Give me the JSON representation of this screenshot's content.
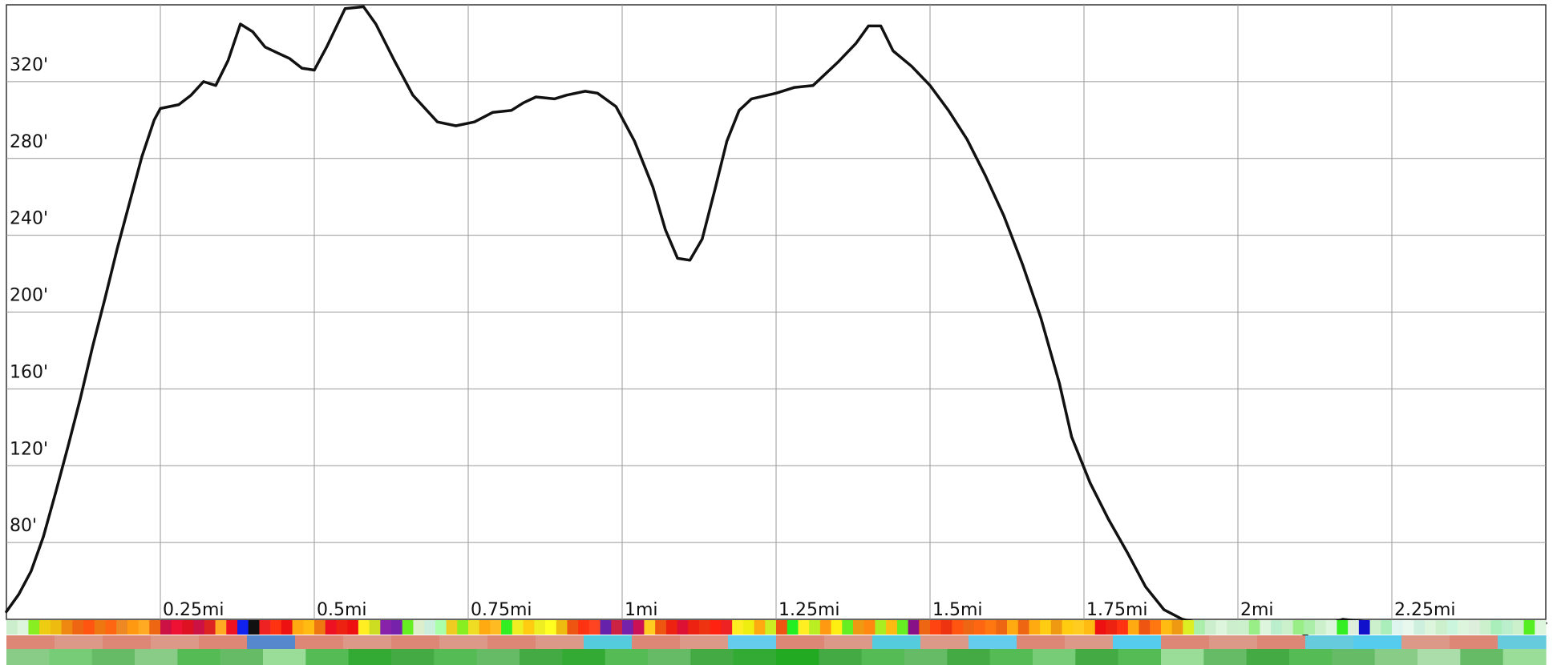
{
  "chart_data": {
    "type": "line",
    "title": "",
    "xlabel": "",
    "ylabel": "",
    "x_unit": "mi",
    "y_unit": "ft",
    "xlim": [
      0,
      2.5
    ],
    "ylim": [
      40,
      360
    ],
    "grid": true,
    "x_ticks": [
      {
        "value": 0.25,
        "label": "0.25mi"
      },
      {
        "value": 0.5,
        "label": "0.5mi"
      },
      {
        "value": 0.75,
        "label": "0.75mi"
      },
      {
        "value": 1.0,
        "label": "1mi"
      },
      {
        "value": 1.25,
        "label": "1.25mi"
      },
      {
        "value": 1.5,
        "label": "1.5mi"
      },
      {
        "value": 1.75,
        "label": "1.75mi"
      },
      {
        "value": 2.0,
        "label": "2mi"
      },
      {
        "value": 2.25,
        "label": "2.25mi"
      }
    ],
    "y_ticks": [
      {
        "value": 80,
        "label": "80'"
      },
      {
        "value": 120,
        "label": "120'"
      },
      {
        "value": 160,
        "label": "160'"
      },
      {
        "value": 200,
        "label": "200'"
      },
      {
        "value": 240,
        "label": "240'"
      },
      {
        "value": 280,
        "label": "280'"
      },
      {
        "value": 320,
        "label": "320'"
      }
    ],
    "series": [
      {
        "color": "#111111",
        "points": [
          [
            0.0,
            44
          ],
          [
            0.02,
            53
          ],
          [
            0.04,
            65
          ],
          [
            0.06,
            83
          ],
          [
            0.08,
            106
          ],
          [
            0.1,
            130
          ],
          [
            0.12,
            155
          ],
          [
            0.14,
            182
          ],
          [
            0.16,
            207
          ],
          [
            0.18,
            233
          ],
          [
            0.2,
            257
          ],
          [
            0.22,
            281
          ],
          [
            0.24,
            300
          ],
          [
            0.25,
            306
          ],
          [
            0.28,
            308
          ],
          [
            0.3,
            313
          ],
          [
            0.32,
            320
          ],
          [
            0.34,
            318
          ],
          [
            0.36,
            331
          ],
          [
            0.38,
            350
          ],
          [
            0.4,
            346
          ],
          [
            0.42,
            338
          ],
          [
            0.44,
            335
          ],
          [
            0.46,
            332
          ],
          [
            0.48,
            327
          ],
          [
            0.5,
            326
          ],
          [
            0.52,
            338
          ],
          [
            0.55,
            358
          ],
          [
            0.58,
            359
          ],
          [
            0.6,
            350
          ],
          [
            0.63,
            331
          ],
          [
            0.66,
            313
          ],
          [
            0.7,
            299
          ],
          [
            0.73,
            297
          ],
          [
            0.76,
            299
          ],
          [
            0.79,
            304
          ],
          [
            0.82,
            305
          ],
          [
            0.84,
            309
          ],
          [
            0.86,
            312
          ],
          [
            0.89,
            311
          ],
          [
            0.91,
            313
          ],
          [
            0.94,
            315
          ],
          [
            0.96,
            314
          ],
          [
            0.99,
            307
          ],
          [
            1.02,
            289
          ],
          [
            1.05,
            265
          ],
          [
            1.07,
            243
          ],
          [
            1.09,
            228
          ],
          [
            1.11,
            227
          ],
          [
            1.13,
            238
          ],
          [
            1.15,
            263
          ],
          [
            1.17,
            289
          ],
          [
            1.19,
            305
          ],
          [
            1.21,
            311
          ],
          [
            1.25,
            314
          ],
          [
            1.28,
            317
          ],
          [
            1.31,
            318
          ],
          [
            1.35,
            330
          ],
          [
            1.38,
            340
          ],
          [
            1.4,
            349
          ],
          [
            1.42,
            349
          ],
          [
            1.44,
            336
          ],
          [
            1.47,
            328
          ],
          [
            1.5,
            318
          ],
          [
            1.53,
            305
          ],
          [
            1.56,
            290
          ],
          [
            1.59,
            271
          ],
          [
            1.62,
            250
          ],
          [
            1.65,
            225
          ],
          [
            1.68,
            197
          ],
          [
            1.71,
            163
          ],
          [
            1.73,
            135
          ],
          [
            1.76,
            111
          ],
          [
            1.79,
            92
          ],
          [
            1.82,
            75
          ],
          [
            1.85,
            57
          ],
          [
            1.88,
            45
          ],
          [
            1.91,
            40
          ],
          [
            1.94,
            38
          ],
          [
            1.97,
            38
          ],
          [
            2.0,
            38
          ],
          [
            2.03,
            39
          ],
          [
            2.05,
            37
          ],
          [
            2.08,
            36
          ],
          [
            2.11,
            32
          ],
          [
            2.14,
            37
          ],
          [
            2.17,
            40
          ],
          [
            2.2,
            39
          ],
          [
            2.23,
            38
          ],
          [
            2.27,
            37
          ],
          [
            2.3,
            36
          ],
          [
            2.35,
            37
          ],
          [
            2.4,
            36
          ],
          [
            2.43,
            33
          ],
          [
            2.47,
            35
          ],
          [
            2.5,
            38
          ]
        ]
      }
    ],
    "legend": "none"
  },
  "strips": {
    "row1_colors": [
      "#cceecc",
      "#ddf5dd",
      "#88ee22",
      "#eecc11",
      "#eebb11",
      "#ee8811",
      "#ee6611",
      "#ff5511",
      "#ee7711",
      "#ff6611",
      "#ee8822",
      "#ff9911",
      "#ffaa22",
      "#ee6611",
      "#cc1144",
      "#ee1133",
      "#dd1122",
      "#cc1144",
      "#dd2222",
      "#ffaa22",
      "#ee1122",
      "#1122ee",
      "#111111",
      "#ee2222",
      "#ff3311",
      "#ee1111",
      "#ffaa11",
      "#ffbb11",
      "#ee7711",
      "#ee1122",
      "#ee2211",
      "#ee1111",
      "#ffee22",
      "#ccdd22",
      "#8822aa",
      "#7722aa",
      "#66ee22",
      "#ddeecc",
      "#cceedd",
      "#aaffaa",
      "#eecc22",
      "#88ee22",
      "#eedd22",
      "#ffaa11",
      "#ffbb22",
      "#33ee22",
      "#eeee22",
      "#ffcc11",
      "#eeee22",
      "#ffff22",
      "#eebb11",
      "#ee5511",
      "#ff3311",
      "#ff4422",
      "#6622aa",
      "#cc2244",
      "#7722aa",
      "#cc1155",
      "#ffcc22",
      "#ee5511",
      "#ee2211",
      "#dd1133",
      "#ee2211",
      "#ee3311",
      "#ff2211",
      "#ee2222",
      "#ffee22",
      "#eeee11",
      "#ffaa11",
      "#ccee22",
      "#ee5511",
      "#22ee22",
      "#ffee22",
      "#bbee22",
      "#ff9911",
      "#ffee11",
      "#66ee22",
      "#ee9911",
      "#ff8811",
      "#aaee22",
      "#ffbb11",
      "#66ee22",
      "#881188",
      "#ee6611",
      "#ff4411",
      "#ee3311",
      "#ff5511",
      "#ee6611",
      "#ff6611",
      "#ff7711",
      "#ee6611",
      "#ffaa11",
      "#ee6611",
      "#ffaa11",
      "#ffcc11",
      "#ee9911",
      "#ffcc11",
      "#ffcc22",
      "#ffbb11",
      "#ee1111",
      "#ee2211",
      "#ff3311",
      "#ffaa11",
      "#ee5511",
      "#ff7711",
      "#ffbb11",
      "#ee9911",
      "#ddee22",
      "#aaeeaa",
      "#cceecc",
      "#ddf5dd",
      "#cceecc",
      "#ccf0cc",
      "#99ee88",
      "#ddf5dd",
      "#bbeecc",
      "#ccf0cc",
      "#99ee88",
      "#aaeeaa",
      "#ccf0cc",
      "#ddf5dd",
      "#33ee22",
      "#ddeedd",
      "#1111cc",
      "#ccf0cc",
      "#aaeebb",
      "#ddf5ee",
      "#e8f8ee",
      "#ccf0dd",
      "#ddf5dd",
      "#ccf0cc",
      "#ccf5dd",
      "#ddf5dd",
      "#ddeedd",
      "#ccf0cc",
      "#aaeebb",
      "#bbeecc",
      "#ccf0cc",
      "#55ee22",
      "#ddf5dd"
    ],
    "row2_colors": [
      "#dd8877",
      "#dd9988",
      "#dd8877",
      "#dd9988",
      "#dd8877",
      "#5588cc",
      "#dd8877",
      "#dd9988",
      "#dd8877",
      "#dd9988",
      "#dd8877",
      "#dd9988",
      "#55ccdd",
      "#dd8877",
      "#dd9988",
      "#66ccee",
      "#dd8877",
      "#dd9988",
      "#55ccdd",
      "#dd9988",
      "#66ccee",
      "#dd8877",
      "#dd9988",
      "#55ccee",
      "#dd8877",
      "#dd9988",
      "#dd8877",
      "#66ccdd",
      "#55ccee",
      "#dd9988",
      "#dd8877",
      "#66ccdd"
    ],
    "row3_colors": [
      "#88cc88",
      "#77cc77",
      "#66bb66",
      "#88cc88",
      "#55bb55",
      "#66bb66",
      "#99dd99",
      "#55bb55",
      "#33aa33",
      "#44aa44",
      "#55bb55",
      "#66bb66",
      "#44aa44",
      "#33aa33",
      "#55bb55",
      "#66bb66",
      "#44aa44",
      "#33aa33",
      "#22aa22",
      "#44aa44",
      "#55bb55",
      "#66bb66",
      "#44aa44",
      "#55bb55",
      "#77cc77",
      "#44aa44",
      "#55bb55",
      "#99dd99",
      "#66bb66",
      "#44aa44",
      "#55bb55",
      "#66bb66",
      "#88cc88",
      "#aaddaa",
      "#66bb66",
      "#99dd99"
    ]
  }
}
